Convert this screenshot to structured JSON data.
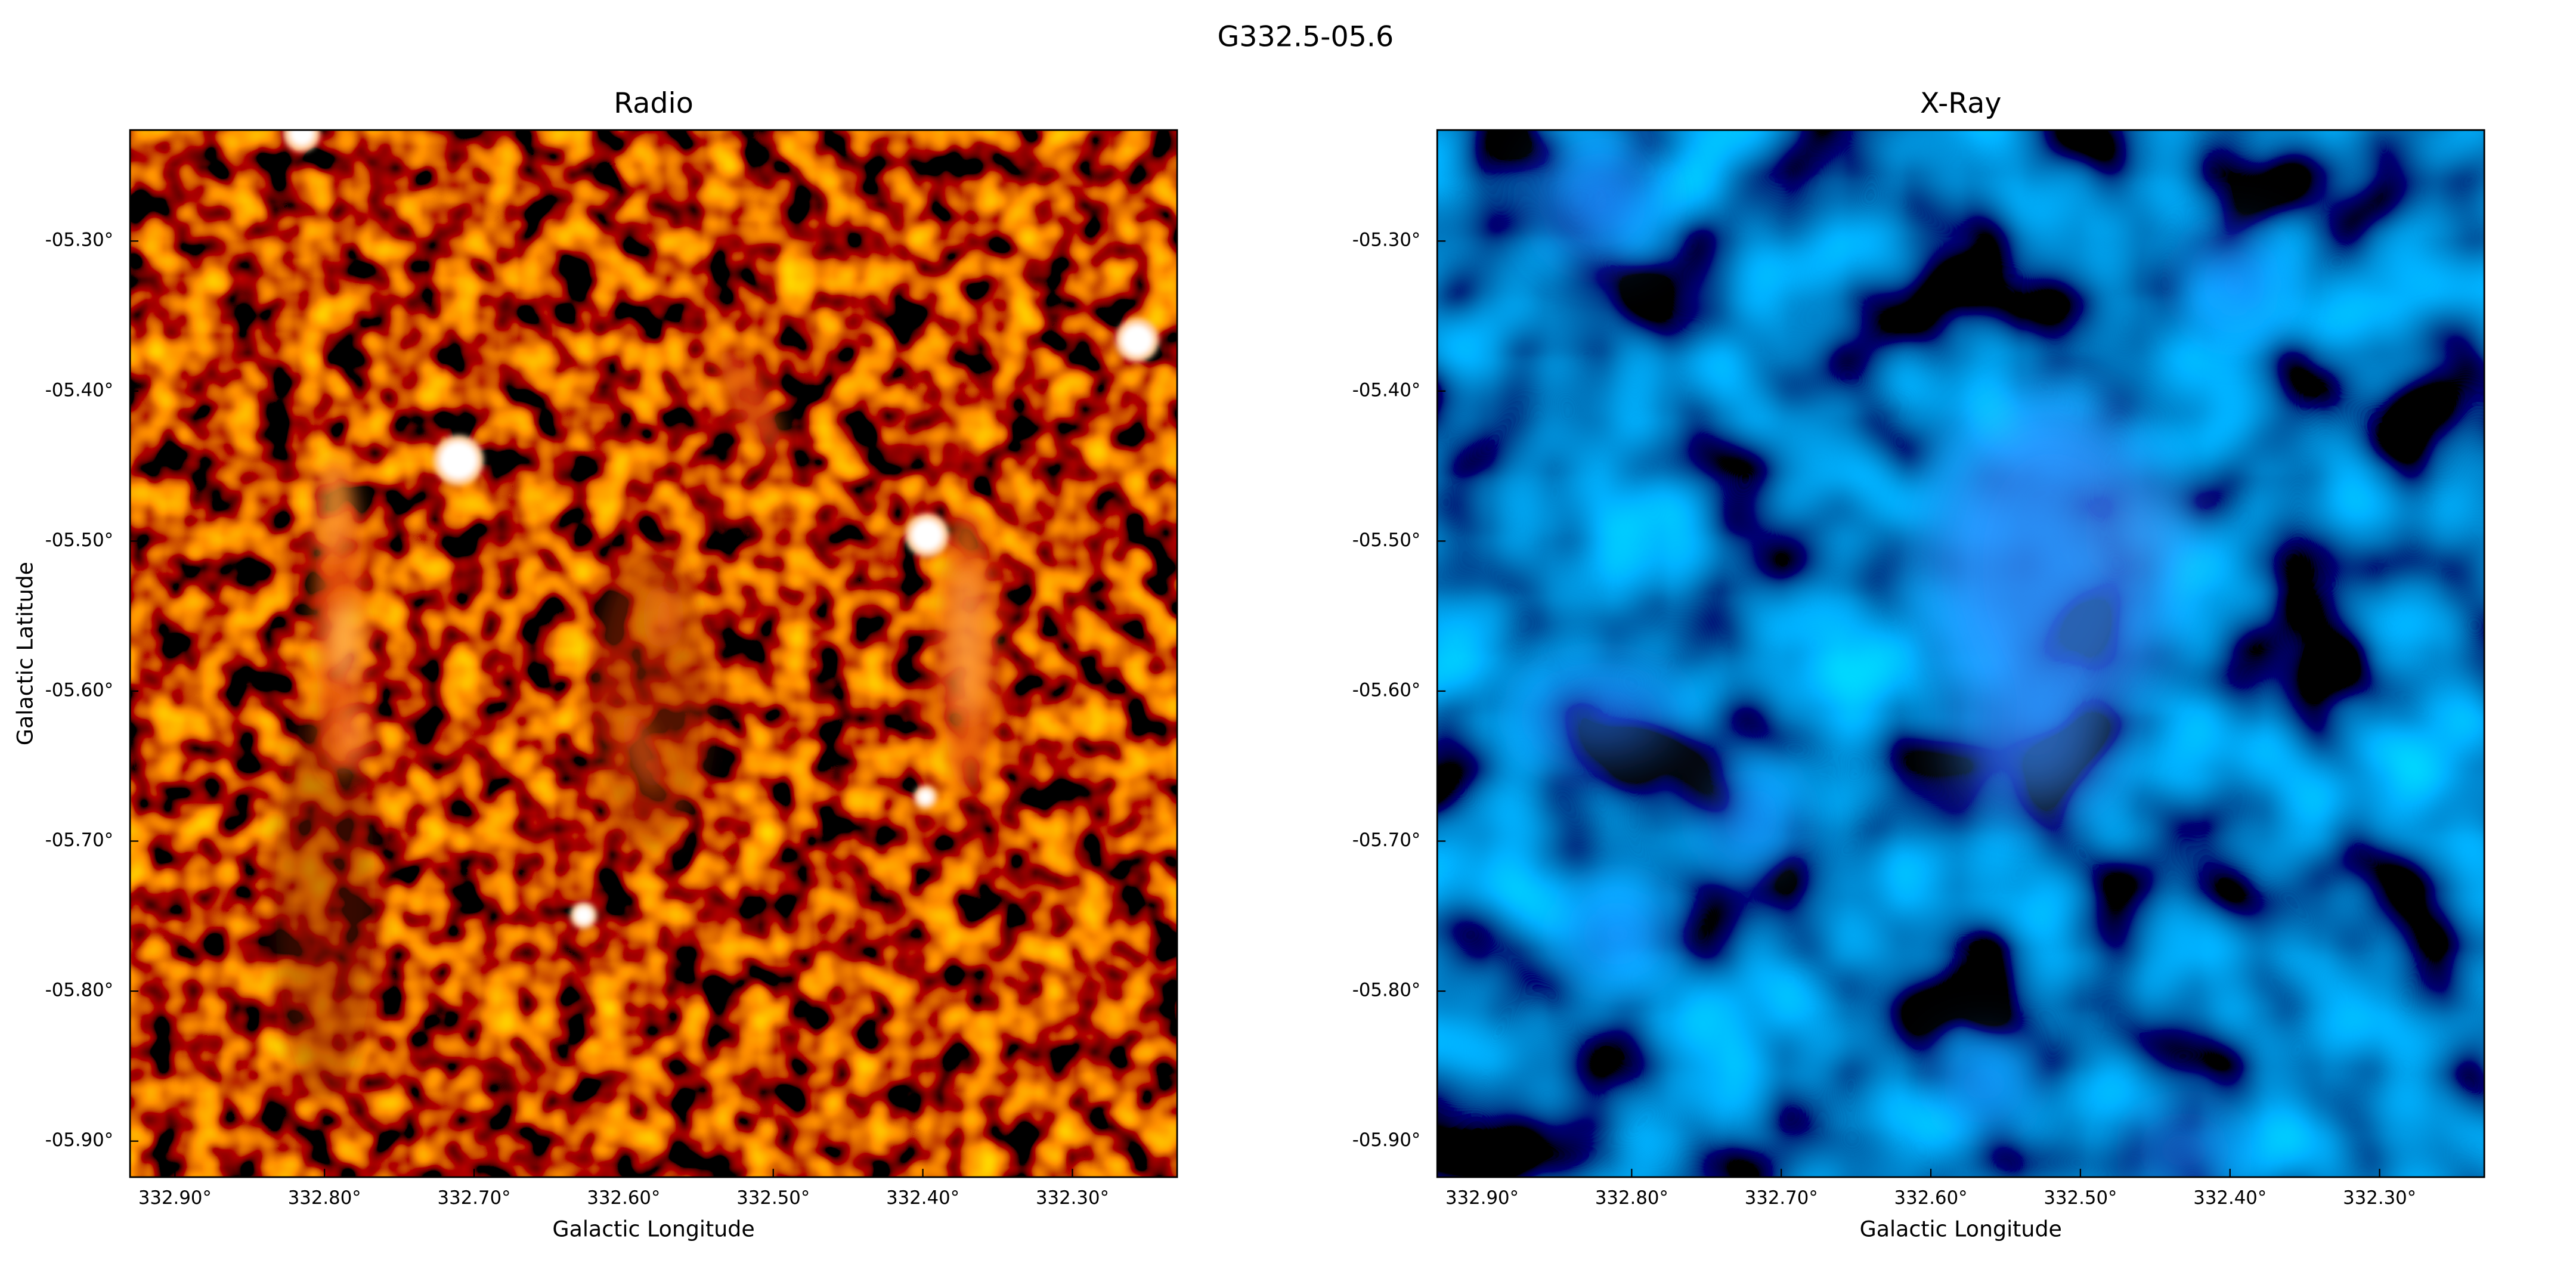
{
  "title": "G332.5-05.6",
  "chart_data": [
    {
      "type": "image",
      "title": "Radio",
      "cmap": "hot",
      "xlabel": "Galactic Longitude",
      "ylabel": "Galactic Latitude",
      "xlim": [
        332.93,
        332.23
      ],
      "ylim": [
        -5.924,
        -5.226
      ],
      "xticks": [
        {
          "value": 332.9,
          "label": "332.90°"
        },
        {
          "value": 332.8,
          "label": "332.80°"
        },
        {
          "value": 332.7,
          "label": "332.70°"
        },
        {
          "value": 332.6,
          "label": "332.60°"
        },
        {
          "value": 332.5,
          "label": "332.50°"
        },
        {
          "value": 332.4,
          "label": "332.40°"
        },
        {
          "value": 332.3,
          "label": "332.30°"
        }
      ],
      "yticks": [
        {
          "value": -5.3,
          "label": "-05.30°"
        },
        {
          "value": -5.4,
          "label": "-05.40°"
        },
        {
          "value": -5.5,
          "label": "-05.50°"
        },
        {
          "value": -5.6,
          "label": "-05.60°"
        },
        {
          "value": -5.7,
          "label": "-05.70°"
        },
        {
          "value": -5.8,
          "label": "-05.80°"
        },
        {
          "value": -5.9,
          "label": "-05.90°"
        }
      ]
    },
    {
      "type": "image",
      "title": "X-Ray",
      "cmap": "blue",
      "xlabel": "Galactic Longitude",
      "xlim": [
        332.93,
        332.23
      ],
      "ylim": [
        -5.924,
        -5.226
      ],
      "xticks": [
        {
          "value": 332.9,
          "label": "332.90°"
        },
        {
          "value": 332.8,
          "label": "332.80°"
        },
        {
          "value": 332.7,
          "label": "332.70°"
        },
        {
          "value": 332.6,
          "label": "332.60°"
        },
        {
          "value": 332.5,
          "label": "332.50°"
        },
        {
          "value": 332.4,
          "label": "332.40°"
        },
        {
          "value": 332.3,
          "label": "332.30°"
        }
      ],
      "yticks": [
        {
          "value": -5.3,
          "label": "-05.30°"
        },
        {
          "value": -5.4,
          "label": "-05.40°"
        },
        {
          "value": -5.5,
          "label": "-05.50°"
        },
        {
          "value": -5.6,
          "label": "-05.60°"
        },
        {
          "value": -5.7,
          "label": "-05.70°"
        },
        {
          "value": -5.8,
          "label": "-05.80°"
        },
        {
          "value": -5.9,
          "label": "-05.90°"
        }
      ]
    }
  ]
}
